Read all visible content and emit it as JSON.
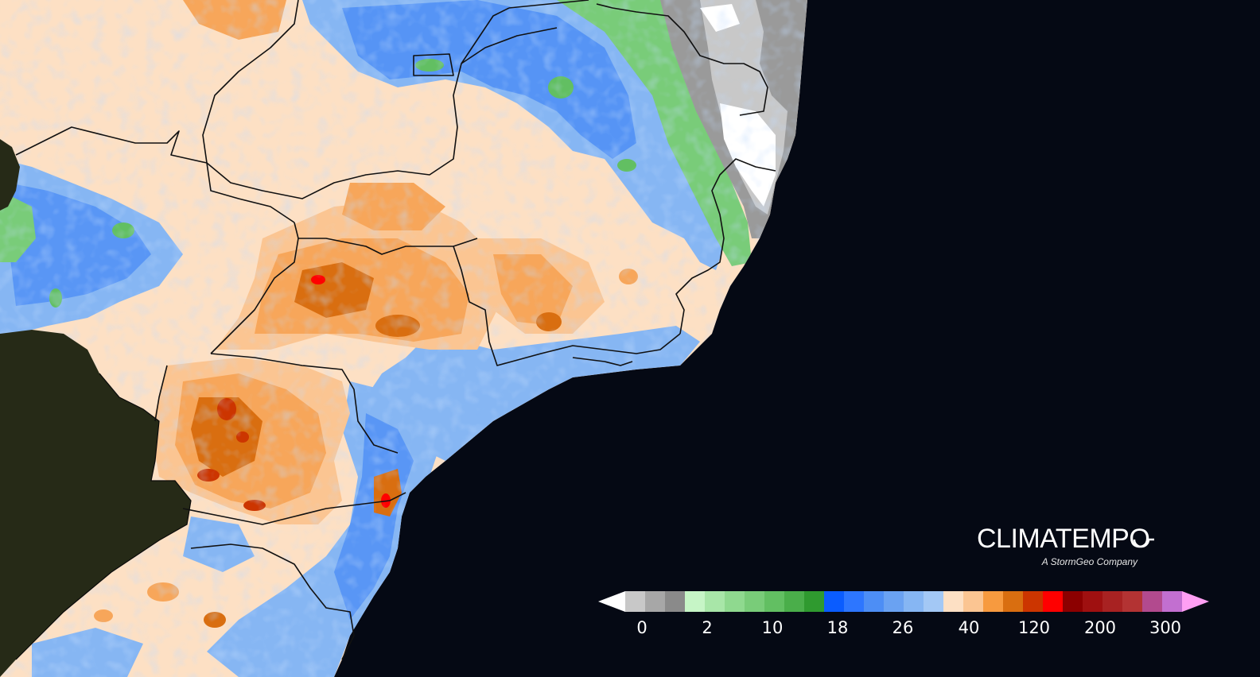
{
  "logo": {
    "brand": "CLIMATEMPO",
    "tagline": "A StormGeo Company"
  },
  "legend": {
    "colors": [
      "#ffffff",
      "#c8c8c8",
      "#a7a7a7",
      "#8a8a8a",
      "#c6f5c6",
      "#a8e6a8",
      "#8fd98f",
      "#79cc79",
      "#62bf62",
      "#4aae4a",
      "#2f9a2f",
      "#0a5cff",
      "#2d76ff",
      "#4d8ef5",
      "#6aa2f2",
      "#86b6f3",
      "#a3c8f5",
      "#fde0c4",
      "#fbc592",
      "#f79a3f",
      "#d96e10",
      "#cc3500",
      "#ff0000",
      "#8c0000",
      "#9f1010",
      "#a82222",
      "#b33333",
      "#b24a8e",
      "#c26fd0",
      "#ff9ff3"
    ],
    "tick_labels": [
      "0",
      "2",
      "10",
      "18",
      "26",
      "40",
      "120",
      "200",
      "300"
    ]
  },
  "map": {
    "base_colors": {
      "ocean": "#050914",
      "foreign_land": "#262a17",
      "dry": "#fde0c4",
      "moderate": "#f7a65a",
      "heavy": "#d96e10",
      "extreme": "#ff0000",
      "light_blue": "#a3c8f5",
      "blue": "#4d8ef5",
      "green": "#62bf62",
      "gray": "#9a9a9a",
      "white": "#ffffff",
      "boundary": "#111111"
    }
  }
}
